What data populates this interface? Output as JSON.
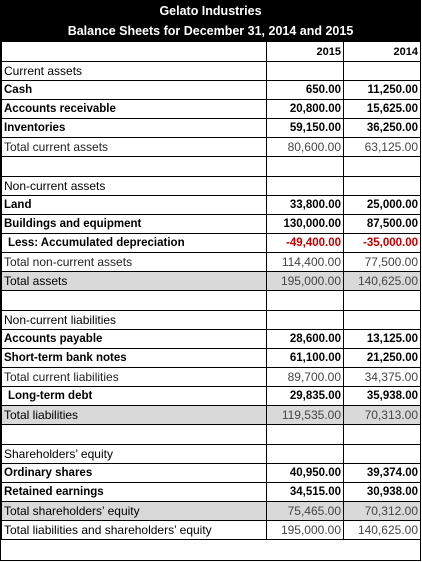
{
  "company": "Gelato Industries",
  "subtitle": "Balance Sheets for December 31, 2014 and 2015",
  "columns": [
    "2015",
    "2014"
  ],
  "rows": [
    {
      "type": "section",
      "label": "Current assets"
    },
    {
      "type": "item",
      "label": "Cash",
      "v2015": "650.00",
      "v2014": "11,250.00"
    },
    {
      "type": "item",
      "label": "Accounts receivable",
      "v2015": "20,800.00",
      "v2014": "15,625.00"
    },
    {
      "type": "item",
      "label": "Inventories",
      "v2015": "59,150.00",
      "v2014": "36,250.00"
    },
    {
      "type": "subtotal",
      "label": "Total current assets",
      "v2015": "80,600.00",
      "v2014": "63,125.00"
    },
    {
      "type": "blank"
    },
    {
      "type": "section",
      "label": "Non-current assets"
    },
    {
      "type": "item",
      "label": "Land",
      "v2015": "33,800.00",
      "v2014": "25,000.00"
    },
    {
      "type": "item",
      "label": "Buildings and equipment",
      "v2015": "130,000.00",
      "v2014": "87,500.00"
    },
    {
      "type": "item",
      "label": "Less: Accumulated depreciation",
      "v2015": "-49,400.00",
      "v2014": "-35,000.00",
      "negative": true,
      "indent": true
    },
    {
      "type": "subtotal",
      "label": "Total non-current assets",
      "v2015": "114,400.00",
      "v2014": "77,500.00"
    },
    {
      "type": "total",
      "label": "Total assets",
      "v2015": "195,000.00",
      "v2014": "140,625.00"
    },
    {
      "type": "blank"
    },
    {
      "type": "section",
      "label": "Non-current liabilities"
    },
    {
      "type": "item",
      "label": "Accounts payable",
      "v2015": "28,600.00",
      "v2014": "13,125.00"
    },
    {
      "type": "item",
      "label": "Short-term bank notes",
      "v2015": "61,100.00",
      "v2014": "21,250.00"
    },
    {
      "type": "subtotal",
      "label": "Total current liabilities",
      "v2015": "89,700.00",
      "v2014": "34,375.00"
    },
    {
      "type": "item",
      "label": "Long-term debt",
      "v2015": "29,835.00",
      "v2014": "35,938.00",
      "indent": true
    },
    {
      "type": "total",
      "label": "Total liabilities",
      "v2015": "119,535.00",
      "v2014": "70,313.00"
    },
    {
      "type": "blank"
    },
    {
      "type": "section",
      "label": "Shareholders’ equity"
    },
    {
      "type": "item",
      "label": "Ordinary shares",
      "v2015": "40,950.00",
      "v2014": "39,374.00"
    },
    {
      "type": "item",
      "label": "Retained earnings",
      "v2015": "34,515.00",
      "v2014": "30,938.00"
    },
    {
      "type": "total",
      "label": "Total shareholders’ equity",
      "v2015": "75,465.00",
      "v2014": "70,312.00"
    },
    {
      "type": "grand",
      "label": "Total liabilities and shareholders’ equity",
      "v2015": "195,000.00",
      "v2014": "140,625.00"
    }
  ]
}
